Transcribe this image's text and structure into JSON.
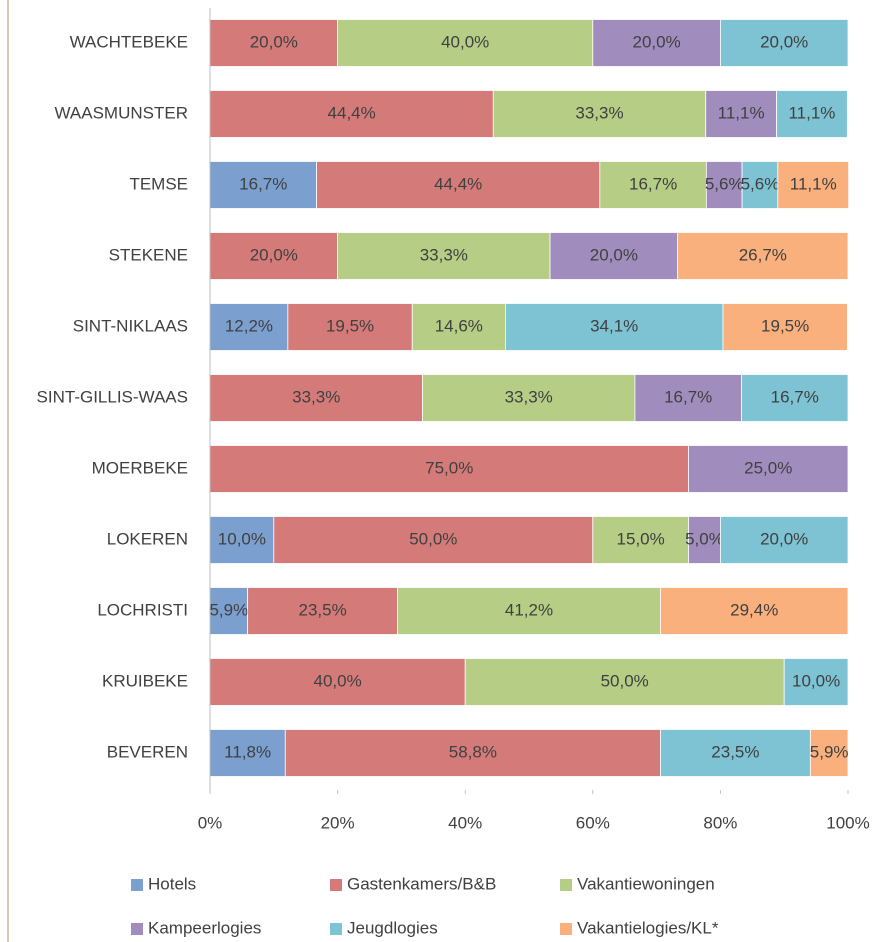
{
  "chart_data": {
    "type": "bar",
    "orientation": "horizontal",
    "stacked": true,
    "categories": [
      "WACHTEBEKE",
      "WAASMUNSTER",
      "TEMSE",
      "STEKENE",
      "SINT-NIKLAAS",
      "SINT-GILLIS-WAAS",
      "MOERBEKE",
      "LOKEREN",
      "LOCHRISTI",
      "KRUIBEKE",
      "BEVEREN"
    ],
    "series": [
      {
        "name": "Hotels",
        "color": "#7b9fcf",
        "values": [
          null,
          null,
          16.7,
          null,
          12.2,
          null,
          null,
          10.0,
          5.9,
          null,
          11.8
        ],
        "value_labels": [
          null,
          null,
          "16,7%",
          null,
          "12,2%",
          null,
          null,
          "10,0%",
          "5,9%",
          null,
          "11,8%"
        ]
      },
      {
        "name": "Gastenkamers/B&B",
        "color": "#d47b79",
        "values": [
          20.0,
          44.4,
          44.4,
          20.0,
          19.5,
          33.3,
          75.0,
          50.0,
          23.5,
          40.0,
          58.8
        ],
        "value_labels": [
          "20,0%",
          "44,4%",
          "44,4%",
          "20,0%",
          "19,5%",
          "33,3%",
          "75,0%",
          "50,0%",
          "23,5%",
          "40,0%",
          "58,8%"
        ]
      },
      {
        "name": "Vakantiewoningen",
        "color": "#b5cd85",
        "values": [
          40.0,
          33.3,
          16.7,
          33.3,
          14.6,
          33.3,
          null,
          15.0,
          41.2,
          50.0,
          null
        ],
        "value_labels": [
          "40,0%",
          "33,3%",
          "16,7%",
          "33,3%",
          "14,6%",
          "33,3%",
          null,
          "15,0%",
          "41,2%",
          "50,0%",
          null
        ]
      },
      {
        "name": "Kampeerlogies",
        "color": "#a08dbe",
        "values": [
          20.0,
          11.1,
          5.6,
          20.0,
          null,
          16.7,
          25.0,
          5.0,
          null,
          null,
          null
        ],
        "value_labels": [
          "20,0%",
          "11,1%",
          "5,6%",
          "20,0%",
          null,
          "16,7%",
          "25,0%",
          "5,0%",
          null,
          null,
          null
        ]
      },
      {
        "name": "Jeugdlogies",
        "color": "#7ec3d4",
        "values": [
          20.0,
          11.1,
          5.6,
          null,
          34.1,
          16.7,
          null,
          20.0,
          null,
          10.0,
          23.5
        ],
        "value_labels": [
          "20,0%",
          "11,1%",
          "5,6%",
          null,
          "34,1%",
          "16,7%",
          null,
          "20,0%",
          null,
          "10,0%",
          "23,5%"
        ]
      },
      {
        "name": "Vakantielogies/KL*",
        "color": "#f9b07d",
        "values": [
          null,
          null,
          11.1,
          26.7,
          19.5,
          null,
          null,
          null,
          29.4,
          null,
          5.9
        ],
        "value_labels": [
          null,
          null,
          "11,1%",
          "26,7%",
          "19,5%",
          null,
          null,
          null,
          "29,4%",
          null,
          "5,9%"
        ]
      }
    ],
    "xlim": [
      0,
      100
    ],
    "xticks": [
      {
        "value": 0,
        "label": "0%"
      },
      {
        "value": 20,
        "label": "20%"
      },
      {
        "value": 40,
        "label": "40%"
      },
      {
        "value": 60,
        "label": "60%"
      },
      {
        "value": 80,
        "label": "80%"
      },
      {
        "value": 100,
        "label": "100%"
      }
    ],
    "grid": false,
    "legend": "bottom"
  }
}
